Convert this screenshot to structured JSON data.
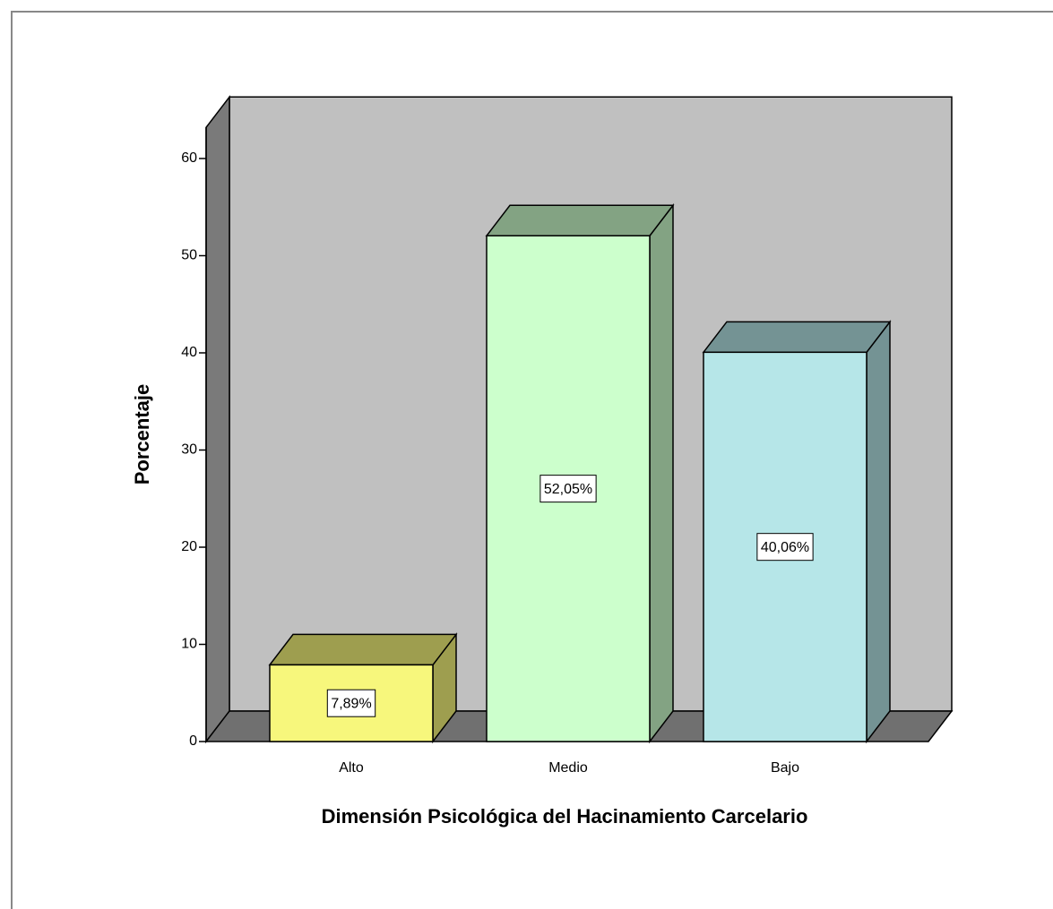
{
  "chart_data": {
    "type": "bar3d",
    "xlabel": "Dimensión Psicológica del Hacinamiento Carcelario",
    "ylabel": "Porcentaje",
    "categories": [
      "Alto",
      "Medio",
      "Bajo"
    ],
    "values": [
      7.89,
      52.05,
      40.06
    ],
    "value_labels": [
      "7,89%",
      "52,05%",
      "40,06%"
    ],
    "colors": [
      "#f7f77c",
      "#ccffcc",
      "#b6e6e8"
    ],
    "ylim": [
      0,
      63.2
    ],
    "yticks": [
      0,
      10,
      20,
      30,
      40,
      50,
      60
    ],
    "grid": false
  }
}
